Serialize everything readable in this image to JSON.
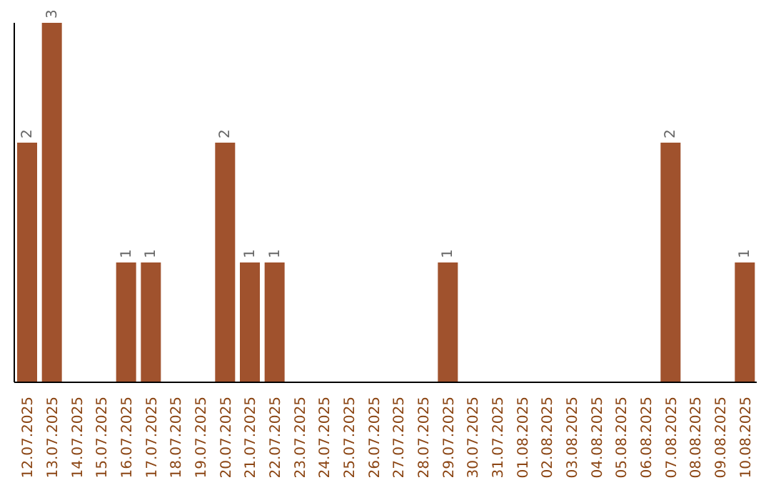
{
  "chart_data": {
    "type": "bar",
    "categories": [
      "12.07.2025",
      "13.07.2025",
      "14.07.2025",
      "15.07.2025",
      "16.07.2025",
      "17.07.2025",
      "18.07.2025",
      "19.07.2025",
      "20.07.2025",
      "21.07.2025",
      "22.07.2025",
      "23.07.2025",
      "24.07.2025",
      "25.07.2025",
      "26.07.2025",
      "27.07.2025",
      "28.07.2025",
      "29.07.2025",
      "30.07.2025",
      "31.07.2025",
      "01.08.2025",
      "02.08.2025",
      "03.08.2025",
      "04.08.2025",
      "05.08.2025",
      "06.08.2025",
      "07.08.2025",
      "08.08.2025",
      "09.08.2025",
      "10.08.2025"
    ],
    "values": [
      2,
      3,
      0,
      0,
      1,
      1,
      0,
      0,
      2,
      1,
      1,
      0,
      0,
      0,
      0,
      0,
      0,
      1,
      0,
      0,
      0,
      0,
      0,
      0,
      0,
      0,
      2,
      0,
      0,
      1
    ],
    "value_labels": [
      "2",
      "3",
      null,
      null,
      "1",
      "1",
      null,
      null,
      "2",
      "1",
      "1",
      null,
      null,
      null,
      null,
      null,
      null,
      "1",
      null,
      null,
      null,
      null,
      null,
      null,
      null,
      null,
      "2",
      null,
      null,
      "1"
    ],
    "color": "#a0522d",
    "grid": false,
    "legend": false
  }
}
